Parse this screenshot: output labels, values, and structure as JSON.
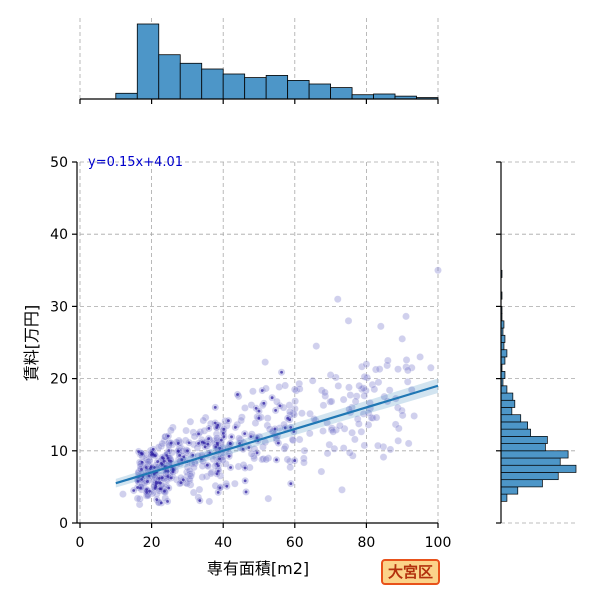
{
  "chart_data": {
    "type": "scatter",
    "xlabel": "専有面積[m2]",
    "ylabel": "賃料[万円]",
    "xlim": [
      0,
      100
    ],
    "ylim": [
      0,
      50
    ],
    "x_ticks": [
      "0",
      "20",
      "40",
      "60",
      "80",
      "100"
    ],
    "y_ticks": [
      "0",
      "10",
      "20",
      "30",
      "40",
      "50"
    ],
    "grid": true,
    "regression": {
      "label": "y=0.15x+4.01",
      "slope": 0.15,
      "intercept": 4.01,
      "x_range": [
        10,
        100
      ]
    },
    "scatter_sample": [
      {
        "x": 18,
        "y": 5.5
      },
      {
        "x": 19,
        "y": 7.2
      },
      {
        "x": 20,
        "y": 9.8
      },
      {
        "x": 21,
        "y": 6.3
      },
      {
        "x": 22,
        "y": 10.5
      },
      {
        "x": 23,
        "y": 8.1
      },
      {
        "x": 24,
        "y": 6.8
      },
      {
        "x": 25,
        "y": 9.0
      },
      {
        "x": 26,
        "y": 7.5
      },
      {
        "x": 27,
        "y": 11.2
      },
      {
        "x": 28,
        "y": 8.6
      },
      {
        "x": 30,
        "y": 10.0
      },
      {
        "x": 32,
        "y": 12.0
      },
      {
        "x": 34,
        "y": 9.4
      },
      {
        "x": 36,
        "y": 13.1
      },
      {
        "x": 38,
        "y": 10.6
      },
      {
        "x": 40,
        "y": 12.8
      },
      {
        "x": 42,
        "y": 11.0
      },
      {
        "x": 45,
        "y": 14.2
      },
      {
        "x": 48,
        "y": 12.3
      },
      {
        "x": 50,
        "y": 15.5
      },
      {
        "x": 53,
        "y": 13.0
      },
      {
        "x": 55,
        "y": 16.8
      },
      {
        "x": 58,
        "y": 14.5
      },
      {
        "x": 60,
        "y": 18.5
      },
      {
        "x": 62,
        "y": 15.2
      },
      {
        "x": 65,
        "y": 19.7
      },
      {
        "x": 68,
        "y": 16.3
      },
      {
        "x": 70,
        "y": 20.5
      },
      {
        "x": 72,
        "y": 31.0
      },
      {
        "x": 75,
        "y": 28.0
      },
      {
        "x": 78,
        "y": 19.0
      },
      {
        "x": 80,
        "y": 22.0
      },
      {
        "x": 85,
        "y": 17.5
      },
      {
        "x": 90,
        "y": 25.5
      },
      {
        "x": 95,
        "y": 23.0
      },
      {
        "x": 100,
        "y": 35.0
      },
      {
        "x": 12,
        "y": 4.0
      },
      {
        "x": 15,
        "y": 4.5
      },
      {
        "x": 17,
        "y": 5.0
      },
      {
        "x": 19,
        "y": 3.8
      },
      {
        "x": 21,
        "y": 4.8
      },
      {
        "x": 23,
        "y": 11.0
      },
      {
        "x": 31,
        "y": 6.5
      },
      {
        "x": 44,
        "y": 17.8
      },
      {
        "x": 52,
        "y": 8.8
      },
      {
        "x": 66,
        "y": 24.5
      },
      {
        "x": 76,
        "y": 12.5
      },
      {
        "x": 86,
        "y": 22.5
      },
      {
        "x": 98,
        "y": 21.5
      }
    ],
    "x_hist": {
      "bin_edges": [
        10,
        16,
        22,
        28,
        34,
        40,
        46,
        52,
        58,
        64,
        70,
        76,
        82,
        88,
        94,
        100
      ],
      "counts": [
        8,
        105,
        62,
        50,
        42,
        35,
        30,
        33,
        26,
        21,
        16,
        6,
        7,
        4,
        2
      ]
    },
    "y_hist": {
      "bin_edges": [
        3,
        4,
        5,
        6,
        7,
        8,
        9,
        10,
        11,
        12,
        13,
        14,
        15,
        16,
        17,
        18,
        19,
        20,
        21,
        22,
        23,
        24,
        25,
        26,
        27,
        28,
        29,
        30,
        31,
        32,
        33,
        34,
        35
      ],
      "counts": [
        6,
        17,
        42,
        58,
        76,
        60,
        68,
        45,
        47,
        30,
        27,
        20,
        11,
        14,
        12,
        6,
        2,
        4,
        1,
        4,
        6,
        3,
        4,
        2,
        3,
        1,
        1,
        0,
        1,
        0,
        0,
        1
      ]
    }
  },
  "badge": {
    "label": "大宮区"
  },
  "colors": {
    "scatter": "#7779cc",
    "scatter_dark": "#2a1aa0",
    "regression": "#1f77b4",
    "hist": "#4d96c8",
    "equation": "#0000cc"
  }
}
